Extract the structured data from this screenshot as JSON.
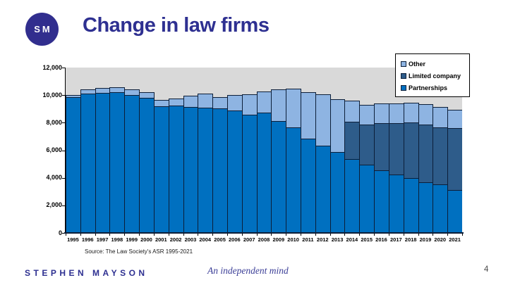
{
  "slide": {
    "logo_text": "SM",
    "title": "Change in law firms",
    "source_note": "Source: The Law Society's ASR 1995-2021",
    "footer_brand": "STEPHEN MAYSON",
    "footer_tagline": "An independent mind",
    "page_number": "4"
  },
  "colors": {
    "brand_navy": "#2e3091",
    "logo_circle": "#312e8e",
    "tagline_navy": "#3b3e97",
    "plot_background": "#d9d9d9",
    "bar_border": "#0c1e38",
    "axis_line": "#0c1e38",
    "partnerships": "#0070c0",
    "limited_company": "#2e5c8a",
    "other": "#8eb4e2"
  },
  "chart_data": {
    "type": "bar",
    "stacked": true,
    "grid": false,
    "plot_bg": "#d9d9d9",
    "legend_position": "top-right",
    "legend_order": [
      "Other",
      "Limited company",
      "Partnerships"
    ],
    "ylim": [
      0,
      12000
    ],
    "y_ticks": [
      "0",
      "2,000",
      "4,000",
      "6,000",
      "8,000",
      "10,000",
      "12,000"
    ],
    "categories": [
      "1995",
      "1996",
      "1997",
      "1998",
      "1999",
      "2000",
      "2001",
      "2002",
      "2003",
      "2004",
      "2005",
      "2006",
      "2007",
      "2008",
      "2009",
      "2010",
      "2011",
      "2012",
      "2013",
      "2014",
      "2015",
      "2016",
      "2017",
      "2018",
      "2019",
      "2020",
      "2021"
    ],
    "series": [
      {
        "name": "Partnerships",
        "color": "#0070c0",
        "values": [
          9850,
          10100,
          10150,
          10200,
          10000,
          9800,
          9200,
          9250,
          9150,
          9100,
          9050,
          8900,
          8600,
          8750,
          8100,
          7650,
          6850,
          6350,
          5850,
          5350,
          4950,
          4550,
          4250,
          4000,
          3700,
          3500,
          3100
        ]
      },
      {
        "name": "Limited company",
        "color": "#2e5c8a",
        "values": [
          0,
          0,
          0,
          0,
          0,
          0,
          0,
          0,
          0,
          0,
          0,
          0,
          0,
          0,
          0,
          0,
          0,
          0,
          0,
          2700,
          2900,
          3400,
          3700,
          4000,
          4150,
          4150,
          4500
        ]
      },
      {
        "name": "Other",
        "color": "#8eb4e2",
        "values": [
          150,
          300,
          350,
          350,
          400,
          400,
          450,
          500,
          800,
          1000,
          800,
          1100,
          1450,
          1500,
          2300,
          2800,
          3350,
          3700,
          3850,
          1550,
          1450,
          1450,
          1450,
          1450,
          1500,
          1500,
          1350
        ]
      }
    ]
  }
}
